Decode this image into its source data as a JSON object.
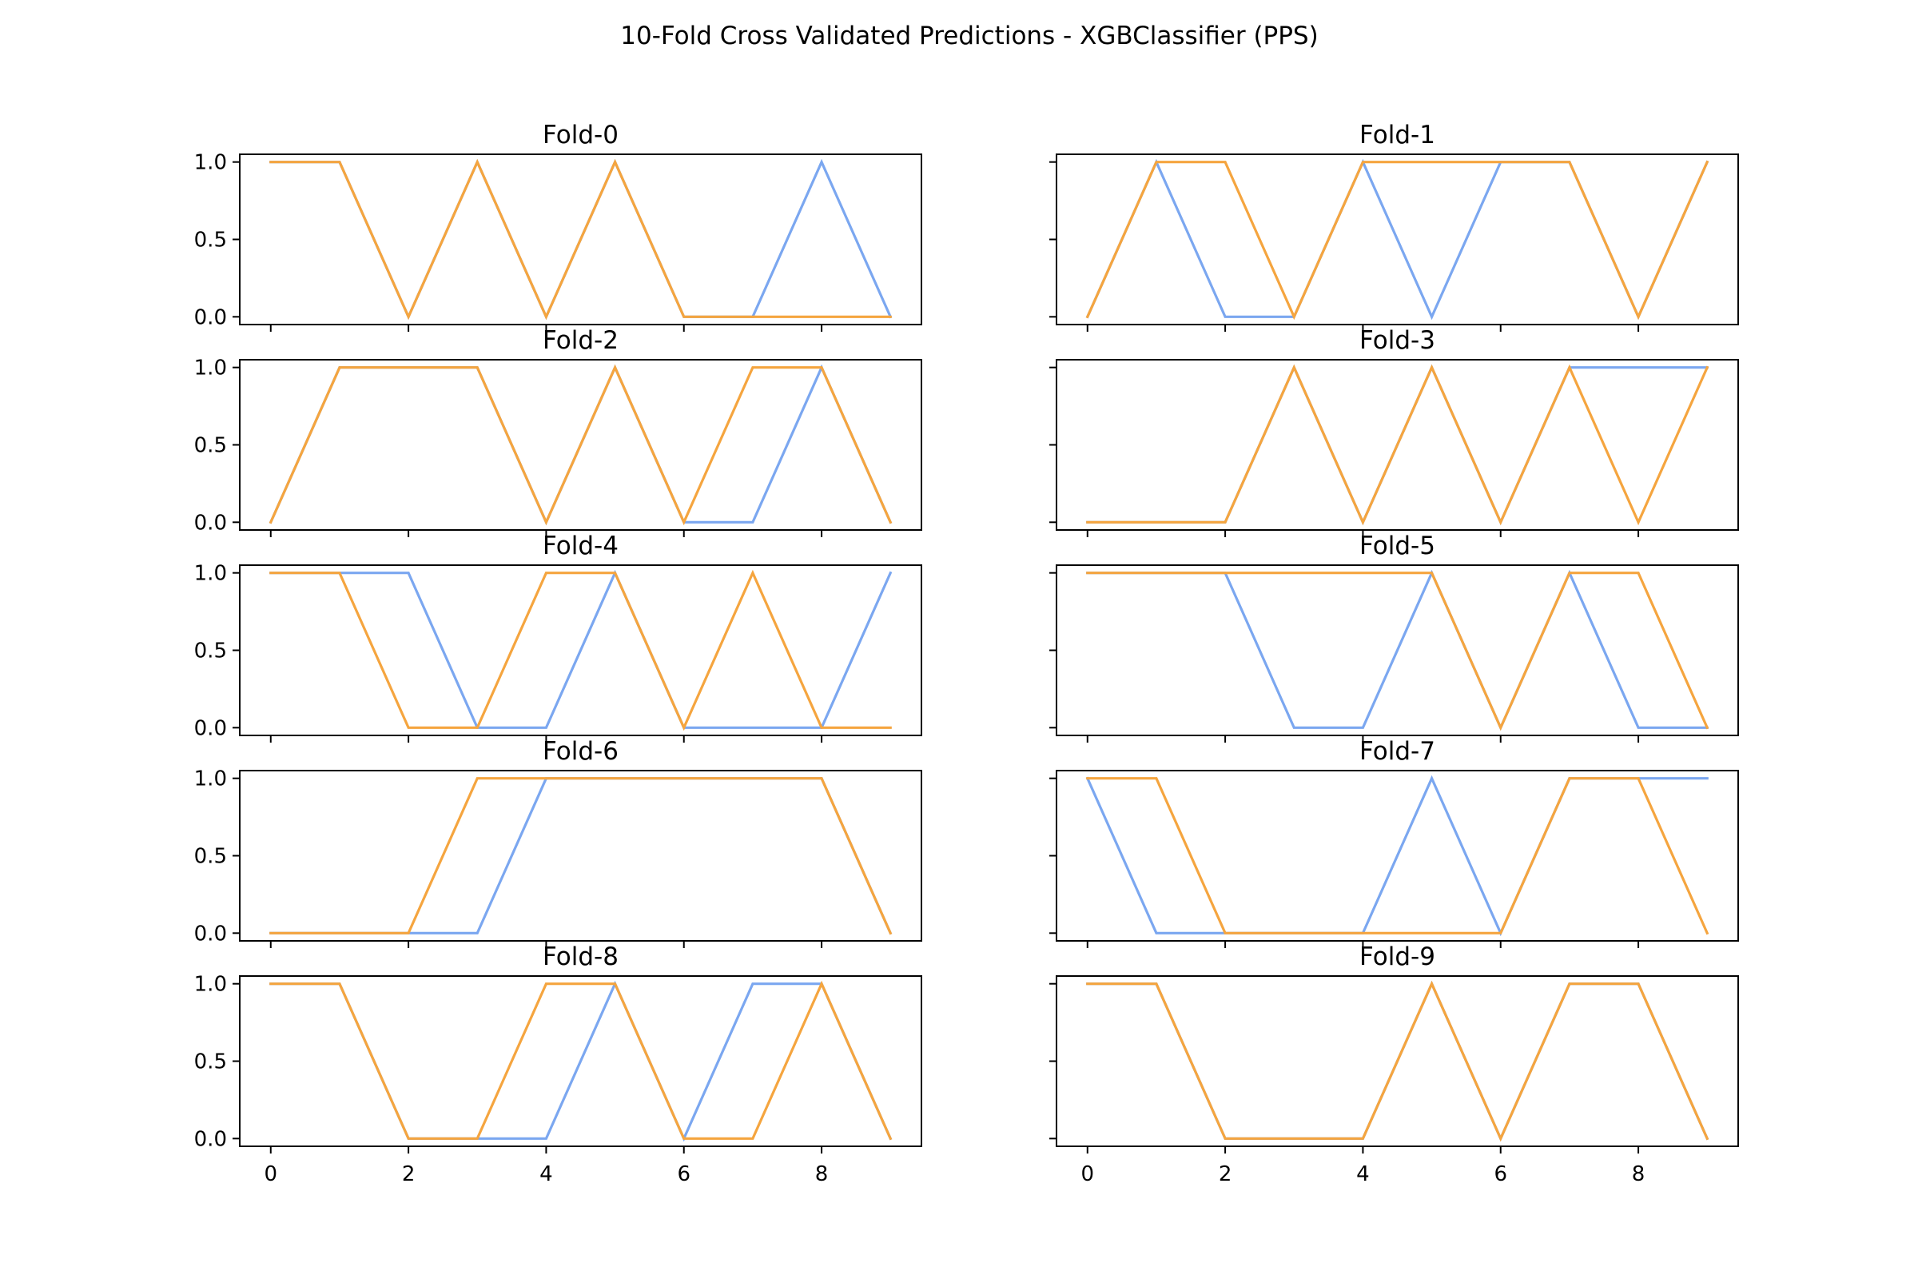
{
  "figure_title": "10-Fold Cross Validated Predictions - XGBClassifier (PPS)",
  "colors": {
    "actual": "#7ba7f0",
    "predicted": "#f5a53f",
    "axes": "#000000"
  },
  "chart_data": [
    {
      "type": "line",
      "title": "Fold-0",
      "x": [
        0,
        1,
        2,
        3,
        4,
        5,
        6,
        7,
        8,
        9
      ],
      "ylim": [
        -0.05,
        1.05
      ],
      "yticks": [
        "0.0",
        "0.5",
        "1.0"
      ],
      "xticks": [
        "0",
        "2",
        "4",
        "6",
        "8"
      ],
      "series": [
        {
          "values": [
            1,
            1,
            0,
            1,
            0,
            1,
            0,
            0,
            1,
            0
          ]
        },
        {
          "values": [
            1,
            1,
            0,
            1,
            0,
            1,
            0,
            0,
            0,
            0
          ]
        }
      ]
    },
    {
      "type": "line",
      "title": "Fold-1",
      "x": [
        0,
        1,
        2,
        3,
        4,
        5,
        6,
        7,
        8,
        9
      ],
      "ylim": [
        -0.05,
        1.05
      ],
      "yticks": [
        "0.0",
        "0.5",
        "1.0"
      ],
      "xticks": [
        "0",
        "2",
        "4",
        "6",
        "8"
      ],
      "series": [
        {
          "values": [
            0,
            1,
            0,
            0,
            1,
            0,
            1,
            1,
            0,
            1
          ]
        },
        {
          "values": [
            0,
            1,
            1,
            0,
            1,
            1,
            1,
            1,
            0,
            1
          ]
        }
      ]
    },
    {
      "type": "line",
      "title": "Fold-2",
      "x": [
        0,
        1,
        2,
        3,
        4,
        5,
        6,
        7,
        8,
        9
      ],
      "ylim": [
        -0.05,
        1.05
      ],
      "yticks": [
        "0.0",
        "0.5",
        "1.0"
      ],
      "xticks": [
        "0",
        "2",
        "4",
        "6",
        "8"
      ],
      "series": [
        {
          "values": [
            0,
            1,
            1,
            1,
            0,
            1,
            0,
            0,
            1,
            0
          ]
        },
        {
          "values": [
            0,
            1,
            1,
            1,
            0,
            1,
            0,
            1,
            1,
            0
          ]
        }
      ]
    },
    {
      "type": "line",
      "title": "Fold-3",
      "x": [
        0,
        1,
        2,
        3,
        4,
        5,
        6,
        7,
        8,
        9
      ],
      "ylim": [
        -0.05,
        1.05
      ],
      "yticks": [
        "0.0",
        "0.5",
        "1.0"
      ],
      "xticks": [
        "0",
        "2",
        "4",
        "6",
        "8"
      ],
      "series": [
        {
          "values": [
            0,
            0,
            0,
            1,
            0,
            1,
            0,
            1,
            1,
            1
          ]
        },
        {
          "values": [
            0,
            0,
            0,
            1,
            0,
            1,
            0,
            1,
            0,
            1
          ]
        }
      ]
    },
    {
      "type": "line",
      "title": "Fold-4",
      "x": [
        0,
        1,
        2,
        3,
        4,
        5,
        6,
        7,
        8,
        9
      ],
      "ylim": [
        -0.05,
        1.05
      ],
      "yticks": [
        "0.0",
        "0.5",
        "1.0"
      ],
      "xticks": [
        "0",
        "2",
        "4",
        "6",
        "8"
      ],
      "series": [
        {
          "values": [
            1,
            1,
            1,
            0,
            0,
            1,
            0,
            0,
            0,
            1
          ]
        },
        {
          "values": [
            1,
            1,
            0,
            0,
            1,
            1,
            0,
            1,
            0,
            0
          ]
        }
      ]
    },
    {
      "type": "line",
      "title": "Fold-5",
      "x": [
        0,
        1,
        2,
        3,
        4,
        5,
        6,
        7,
        8,
        9
      ],
      "ylim": [
        -0.05,
        1.05
      ],
      "yticks": [
        "0.0",
        "0.5",
        "1.0"
      ],
      "xticks": [
        "0",
        "2",
        "4",
        "6",
        "8"
      ],
      "series": [
        {
          "values": [
            1,
            1,
            1,
            0,
            0,
            1,
            0,
            1,
            0,
            0
          ]
        },
        {
          "values": [
            1,
            1,
            1,
            1,
            1,
            1,
            0,
            1,
            1,
            0
          ]
        }
      ]
    },
    {
      "type": "line",
      "title": "Fold-6",
      "x": [
        0,
        1,
        2,
        3,
        4,
        5,
        6,
        7,
        8,
        9
      ],
      "ylim": [
        -0.05,
        1.05
      ],
      "yticks": [
        "0.0",
        "0.5",
        "1.0"
      ],
      "xticks": [
        "0",
        "2",
        "4",
        "6",
        "8"
      ],
      "series": [
        {
          "values": [
            0,
            0,
            0,
            0,
            1,
            1,
            1,
            1,
            1,
            0
          ]
        },
        {
          "values": [
            0,
            0,
            0,
            1,
            1,
            1,
            1,
            1,
            1,
            0
          ]
        }
      ]
    },
    {
      "type": "line",
      "title": "Fold-7",
      "x": [
        0,
        1,
        2,
        3,
        4,
        5,
        6,
        7,
        8,
        9
      ],
      "ylim": [
        -0.05,
        1.05
      ],
      "yticks": [
        "0.0",
        "0.5",
        "1.0"
      ],
      "xticks": [
        "0",
        "2",
        "4",
        "6",
        "8"
      ],
      "series": [
        {
          "values": [
            1,
            0,
            0,
            0,
            0,
            1,
            0,
            1,
            1,
            1
          ]
        },
        {
          "values": [
            1,
            1,
            0,
            0,
            0,
            0,
            0,
            1,
            1,
            0
          ]
        }
      ]
    },
    {
      "type": "line",
      "title": "Fold-8",
      "x": [
        0,
        1,
        2,
        3,
        4,
        5,
        6,
        7,
        8,
        9
      ],
      "ylim": [
        -0.05,
        1.05
      ],
      "yticks": [
        "0.0",
        "0.5",
        "1.0"
      ],
      "xticks": [
        "0",
        "2",
        "4",
        "6",
        "8"
      ],
      "series": [
        {
          "values": [
            1,
            1,
            0,
            0,
            0,
            1,
            0,
            1,
            1,
            0
          ]
        },
        {
          "values": [
            1,
            1,
            0,
            0,
            1,
            1,
            0,
            0,
            1,
            0
          ]
        }
      ]
    },
    {
      "type": "line",
      "title": "Fold-9",
      "x": [
        0,
        1,
        2,
        3,
        4,
        5,
        6,
        7,
        8,
        9
      ],
      "ylim": [
        -0.05,
        1.05
      ],
      "yticks": [
        "0.0",
        "0.5",
        "1.0"
      ],
      "xticks": [
        "0",
        "2",
        "4",
        "6",
        "8"
      ],
      "series": [
        {
          "values": [
            1,
            1,
            0,
            0,
            0,
            1,
            0,
            1,
            1,
            0
          ]
        },
        {
          "values": [
            1,
            1,
            0,
            0,
            0,
            1,
            0,
            1,
            1,
            0
          ]
        }
      ]
    }
  ]
}
